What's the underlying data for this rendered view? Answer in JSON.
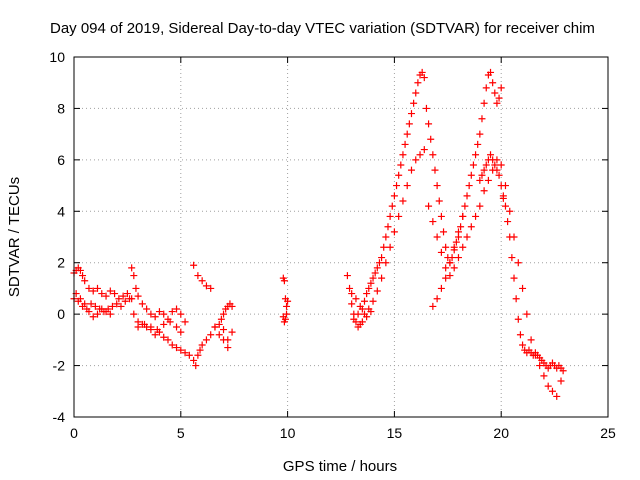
{
  "chart_data": {
    "type": "scatter",
    "title": "Day 094 of 2019, Sidereal Day-to-day VTEC variation (SDTVAR) for receiver chim",
    "xlabel": "GPS time / hours",
    "ylabel": "SDTVAR / TECUs",
    "xlim": [
      0,
      25
    ],
    "ylim": [
      -4,
      10
    ],
    "xticks": [
      "0",
      "5",
      "10",
      "15",
      "20",
      "25"
    ],
    "yticks": [
      "-4",
      "-2",
      "0",
      "2",
      "4",
      "6",
      "8",
      "10"
    ],
    "grid": true,
    "marker": "plus",
    "series": [
      {
        "name": "SDTVAR",
        "color": "#ff0000",
        "x": [
          0.0,
          0.1,
          0.2,
          0.3,
          0.4,
          0.5,
          0.7,
          0.9,
          1.1,
          1.3,
          1.5,
          1.7,
          1.9,
          2.1,
          2.3,
          2.5,
          2.7,
          0.0,
          0.2,
          0.4,
          0.6,
          0.8,
          1.0,
          1.2,
          1.4,
          1.6,
          1.8,
          2.0,
          2.2,
          2.4,
          2.6,
          0.1,
          0.3,
          0.5,
          0.7,
          0.9,
          1.1,
          1.3,
          1.5,
          1.7,
          2.7,
          2.8,
          2.9,
          3.0,
          3.2,
          3.4,
          3.6,
          3.8,
          4.0,
          4.2,
          4.4,
          4.6,
          4.8,
          5.0,
          5.2,
          2.8,
          3.0,
          3.2,
          3.4,
          3.6,
          3.8,
          4.0,
          4.2,
          4.4,
          4.6,
          4.8,
          5.0,
          5.2,
          5.4,
          3.0,
          3.3,
          3.6,
          3.9,
          4.2,
          4.5,
          4.8,
          5.0,
          5.6,
          5.7,
          5.8,
          5.9,
          6.0,
          6.2,
          6.4,
          6.6,
          6.8,
          7.0,
          7.2,
          7.4,
          5.6,
          5.8,
          6.0,
          6.2,
          6.4,
          6.6,
          6.8,
          7.0,
          7.2,
          6.9,
          7.0,
          7.1,
          7.2,
          7.3,
          7.4,
          9.8,
          9.85,
          9.9,
          9.95,
          10.0,
          9.8,
          9.85,
          9.9,
          9.95,
          12.8,
          12.9,
          13.0,
          13.1,
          13.2,
          13.3,
          13.4,
          13.5,
          13.6,
          13.7,
          13.8,
          13.9,
          14.0,
          14.1,
          14.2,
          14.3,
          14.4,
          14.5,
          14.6,
          14.7,
          14.8,
          14.9,
          15.0,
          15.1,
          15.2,
          15.3,
          15.4,
          15.5,
          15.6,
          15.7,
          15.8,
          15.9,
          16.0,
          16.1,
          16.2,
          16.3,
          16.4,
          13.0,
          13.2,
          13.4,
          13.6,
          13.8,
          14.0,
          14.2,
          14.4,
          14.6,
          14.8,
          15.0,
          15.2,
          15.4,
          15.6,
          15.8,
          16.0,
          16.2,
          16.4,
          13.1,
          13.3,
          13.5,
          13.7,
          13.9,
          16.5,
          16.6,
          16.7,
          16.8,
          16.9,
          17.0,
          17.1,
          17.2,
          17.3,
          17.4,
          17.5,
          17.6,
          17.7,
          17.8,
          17.9,
          18.0,
          18.1,
          18.2,
          18.3,
          18.4,
          18.5,
          18.6,
          18.7,
          18.8,
          18.9,
          19.0,
          19.1,
          19.2,
          19.3,
          19.4,
          19.5,
          19.6,
          19.7,
          19.8,
          19.9,
          20.0,
          16.6,
          16.8,
          17.0,
          17.2,
          17.4,
          17.6,
          17.8,
          18.0,
          18.2,
          18.4,
          18.6,
          18.8,
          19.0,
          19.2,
          19.4,
          19.6,
          19.8,
          20.0,
          16.8,
          17.0,
          17.2,
          17.4,
          17.6,
          17.8,
          18.0,
          18.2,
          19.0,
          19.1,
          19.2,
          19.3,
          19.4,
          19.5,
          19.6,
          19.7,
          19.8,
          19.9,
          20.0,
          20.1,
          20.1,
          20.2,
          20.3,
          20.4,
          20.5,
          20.6,
          20.7,
          20.8,
          20.9,
          21.0,
          21.1,
          21.2,
          21.3,
          21.4,
          21.5,
          21.6,
          21.7,
          21.8,
          21.9,
          22.0,
          22.1,
          22.2,
          22.3,
          22.4,
          22.5,
          22.6,
          22.7,
          22.8,
          22.9,
          20.2,
          20.4,
          20.6,
          20.8,
          21.0,
          21.2,
          21.4,
          21.6,
          21.8,
          22.0,
          22.2,
          22.4,
          22.6,
          22.8
        ],
        "y": [
          1.6,
          1.7,
          1.8,
          1.7,
          1.5,
          1.3,
          1.0,
          0.9,
          1.0,
          0.8,
          0.7,
          0.9,
          0.8,
          0.6,
          0.7,
          0.8,
          0.6,
          0.6,
          0.5,
          0.3,
          0.2,
          0.4,
          0.3,
          0.2,
          0.1,
          0.2,
          0.3,
          0.4,
          0.3,
          0.5,
          0.6,
          0.8,
          0.6,
          0.4,
          0.1,
          -0.1,
          0.0,
          0.2,
          0.1,
          0.0,
          1.8,
          1.5,
          1.0,
          0.7,
          0.4,
          0.2,
          0.0,
          -0.1,
          0.1,
          0.0,
          -0.2,
          0.1,
          0.2,
          0.0,
          -0.3,
          0.0,
          -0.3,
          -0.4,
          -0.5,
          -0.6,
          -0.8,
          -0.7,
          -0.9,
          -1.0,
          -1.2,
          -1.3,
          -1.4,
          -1.5,
          -1.6,
          -0.5,
          -0.4,
          -0.5,
          -0.6,
          -0.4,
          -0.3,
          -0.5,
          -0.7,
          -1.8,
          -2.0,
          -1.6,
          -1.4,
          -1.2,
          -1.0,
          -0.8,
          -0.5,
          -0.4,
          -0.6,
          -1.0,
          -0.7,
          1.9,
          1.5,
          1.3,
          1.1,
          1.0,
          -0.5,
          -0.8,
          -1.0,
          -1.3,
          -0.2,
          0.0,
          0.2,
          0.3,
          0.4,
          0.3,
          1.4,
          1.3,
          0.6,
          0.3,
          0.5,
          -0.1,
          -0.3,
          -0.2,
          0.0,
          1.5,
          1.0,
          0.4,
          0.0,
          -0.3,
          -0.5,
          -0.4,
          0.2,
          0.5,
          0.8,
          1.0,
          1.2,
          1.4,
          1.6,
          1.8,
          2.0,
          2.2,
          2.6,
          3.0,
          3.4,
          3.8,
          4.2,
          4.6,
          5.0,
          5.4,
          5.8,
          6.2,
          6.6,
          7.0,
          7.4,
          7.8,
          8.2,
          8.6,
          9.0,
          9.3,
          9.4,
          9.2,
          0.8,
          0.6,
          0.3,
          0.0,
          0.2,
          0.5,
          0.9,
          1.4,
          2.0,
          2.6,
          3.2,
          3.8,
          4.4,
          5.0,
          5.6,
          6.0,
          6.2,
          6.4,
          -0.2,
          0.0,
          -0.3,
          -0.1,
          0.1,
          8.0,
          7.4,
          6.8,
          6.2,
          5.6,
          5.0,
          4.4,
          3.8,
          3.2,
          2.6,
          2.2,
          2.0,
          2.2,
          2.5,
          2.8,
          3.0,
          3.4,
          3.8,
          4.2,
          4.6,
          5.0,
          5.4,
          5.8,
          6.2,
          6.6,
          7.0,
          7.6,
          8.2,
          8.8,
          9.3,
          9.4,
          9.0,
          8.6,
          8.2,
          8.4,
          8.8,
          4.2,
          3.6,
          3.0,
          2.4,
          1.8,
          1.5,
          1.8,
          2.2,
          2.6,
          3.0,
          3.4,
          3.8,
          4.2,
          4.8,
          5.2,
          5.6,
          6.0,
          5.8,
          0.3,
          0.6,
          1.0,
          1.4,
          2.0,
          2.6,
          3.2,
          3.8,
          5.2,
          5.4,
          5.6,
          5.8,
          6.0,
          6.2,
          6.0,
          5.8,
          5.6,
          5.4,
          5.0,
          4.6,
          4.5,
          4.2,
          3.6,
          3.0,
          2.2,
          1.4,
          0.6,
          -0.2,
          -0.8,
          -1.2,
          -1.4,
          -1.5,
          -1.4,
          -1.5,
          -1.6,
          -1.5,
          -1.6,
          -1.7,
          -1.8,
          -1.9,
          -2.0,
          -2.1,
          -2.0,
          -1.9,
          -2.0,
          -2.1,
          -2.0,
          -2.1,
          -2.2,
          5.0,
          4.0,
          3.0,
          2.0,
          1.0,
          0.0,
          -1.0,
          -1.6,
          -2.0,
          -2.4,
          -2.8,
          -3.0,
          -3.2,
          -2.6
        ]
      }
    ]
  }
}
